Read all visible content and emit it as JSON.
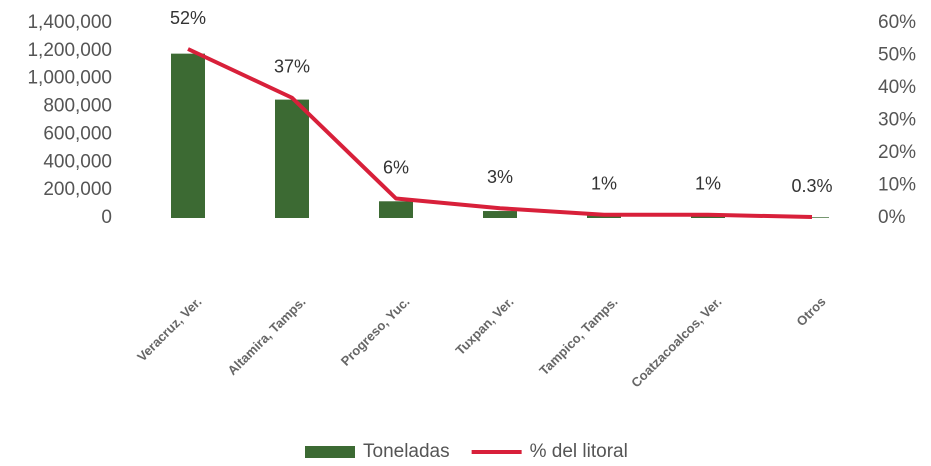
{
  "chart_data": {
    "type": "bar_line",
    "categories": [
      "Veracruz, Ver.",
      "Altamira, Tamps.",
      "Progreso, Yuc.",
      "Tuxpan, Ver.",
      "Tampico, Tamps.",
      "Coatzacoalcos, Ver.",
      "Otros"
    ],
    "series": [
      {
        "name": "Toneladas",
        "color": "#3c6a33",
        "type": "bar",
        "values": [
          1180000,
          850000,
          120000,
          50000,
          20000,
          20000,
          5000
        ]
      },
      {
        "name": "% del litoral",
        "color": "#d8203a",
        "type": "line",
        "axis": "y2",
        "values": [
          52,
          37,
          6,
          3,
          1,
          1,
          0.3
        ],
        "value_labels": [
          "52%",
          "37%",
          "6%",
          "3%",
          "1%",
          "1%",
          "0.3%"
        ]
      }
    ],
    "ylim": [
      0,
      1400000
    ],
    "yticks": [
      {
        "value": 0,
        "label": "0"
      },
      {
        "value": 200000,
        "label": "200,000"
      },
      {
        "value": 400000,
        "label": "400,000"
      },
      {
        "value": 600000,
        "label": "600,000"
      },
      {
        "value": 800000,
        "label": "800,000"
      },
      {
        "value": 1000000,
        "label": "1,000,000"
      },
      {
        "value": 1200000,
        "label": "1,200,000"
      },
      {
        "value": 1400000,
        "label": "1,400,000"
      }
    ],
    "y2lim": [
      0,
      60
    ],
    "y2ticks": [
      {
        "value": 0,
        "label": "0%"
      },
      {
        "value": 10,
        "label": "10%"
      },
      {
        "value": 20,
        "label": "20%"
      },
      {
        "value": 30,
        "label": "30%"
      },
      {
        "value": 40,
        "label": "40%"
      },
      {
        "value": 50,
        "label": "50%"
      },
      {
        "value": 60,
        "label": "60%"
      }
    ],
    "legend": "bottom",
    "grid": false
  }
}
